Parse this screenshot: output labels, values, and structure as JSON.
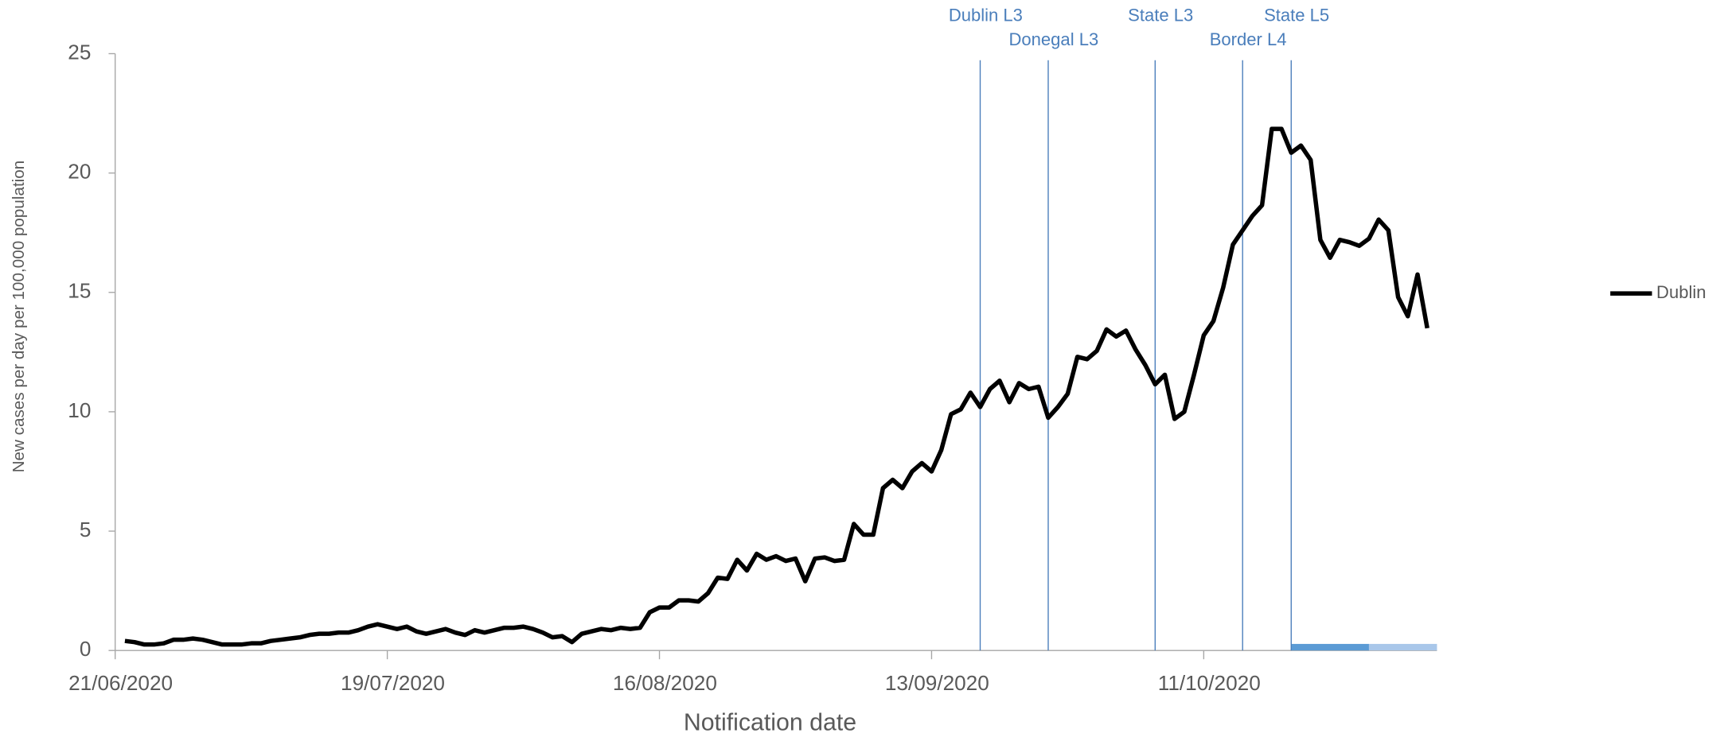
{
  "chart_data": {
    "type": "line",
    "x_label": "Notification date",
    "y_label": "New cases per day per  100,000 population",
    "x": [
      "22/06/2020",
      "23/06/2020",
      "24/06/2020",
      "25/06/2020",
      "26/06/2020",
      "27/06/2020",
      "28/06/2020",
      "29/06/2020",
      "30/06/2020",
      "01/07/2020",
      "02/07/2020",
      "03/07/2020",
      "04/07/2020",
      "05/07/2020",
      "06/07/2020",
      "07/07/2020",
      "08/07/2020",
      "09/07/2020",
      "10/07/2020",
      "11/07/2020",
      "12/07/2020",
      "13/07/2020",
      "14/07/2020",
      "15/07/2020",
      "16/07/2020",
      "17/07/2020",
      "18/07/2020",
      "19/07/2020",
      "20/07/2020",
      "21/07/2020",
      "22/07/2020",
      "23/07/2020",
      "24/07/2020",
      "25/07/2020",
      "26/07/2020",
      "27/07/2020",
      "28/07/2020",
      "29/07/2020",
      "30/07/2020",
      "31/07/2020",
      "01/08/2020",
      "02/08/2020",
      "03/08/2020",
      "04/08/2020",
      "05/08/2020",
      "06/08/2020",
      "07/08/2020",
      "08/08/2020",
      "09/08/2020",
      "10/08/2020",
      "11/08/2020",
      "12/08/2020",
      "13/08/2020",
      "14/08/2020",
      "15/08/2020",
      "16/08/2020",
      "17/08/2020",
      "18/08/2020",
      "19/08/2020",
      "20/08/2020",
      "21/08/2020",
      "22/08/2020",
      "23/08/2020",
      "24/08/2020",
      "25/08/2020",
      "26/08/2020",
      "27/08/2020",
      "28/08/2020",
      "29/08/2020",
      "30/08/2020",
      "31/08/2020",
      "01/09/2020",
      "02/09/2020",
      "03/09/2020",
      "04/09/2020",
      "05/09/2020",
      "06/09/2020",
      "07/09/2020",
      "08/09/2020",
      "09/09/2020",
      "10/09/2020",
      "11/09/2020",
      "12/09/2020",
      "13/09/2020",
      "14/09/2020",
      "15/09/2020",
      "16/09/2020",
      "17/09/2020",
      "18/09/2020",
      "19/09/2020",
      "20/09/2020",
      "21/09/2020",
      "22/09/2020",
      "23/09/2020",
      "24/09/2020",
      "25/09/2020",
      "26/09/2020",
      "27/09/2020",
      "28/09/2020",
      "29/09/2020",
      "30/09/2020",
      "01/10/2020",
      "02/10/2020",
      "03/10/2020",
      "04/10/2020",
      "05/10/2020",
      "06/10/2020",
      "07/10/2020",
      "08/10/2020",
      "09/10/2020",
      "10/10/2020",
      "11/10/2020",
      "12/10/2020",
      "13/10/2020",
      "14/10/2020",
      "15/10/2020",
      "16/10/2020",
      "17/10/2020",
      "18/10/2020",
      "19/10/2020",
      "20/10/2020",
      "21/10/2020",
      "22/10/2020",
      "23/10/2020",
      "24/10/2020",
      "25/10/2020",
      "26/10/2020",
      "27/10/2020",
      "28/10/2020",
      "29/10/2020",
      "30/10/2020",
      "31/10/2020",
      "01/11/2020",
      "02/11/2020",
      "03/11/2020"
    ],
    "series": [
      {
        "name": "Dublin",
        "color": "#000000",
        "values": [
          0.4,
          0.35,
          0.25,
          0.25,
          0.3,
          0.45,
          0.45,
          0.5,
          0.45,
          0.35,
          0.25,
          0.25,
          0.25,
          0.3,
          0.3,
          0.4,
          0.45,
          0.5,
          0.55,
          0.65,
          0.7,
          0.7,
          0.75,
          0.75,
          0.85,
          1.0,
          1.1,
          1.0,
          0.9,
          1.0,
          0.8,
          0.7,
          0.8,
          0.9,
          0.75,
          0.65,
          0.85,
          0.75,
          0.85,
          0.95,
          0.95,
          1.0,
          0.9,
          0.75,
          0.55,
          0.6,
          0.35,
          0.7,
          0.8,
          0.9,
          0.85,
          0.95,
          0.9,
          0.95,
          1.6,
          1.8,
          1.8,
          2.1,
          2.1,
          2.05,
          2.4,
          3.05,
          3.0,
          3.8,
          3.35,
          4.05,
          3.8,
          3.95,
          3.75,
          3.85,
          2.9,
          3.85,
          3.9,
          3.75,
          3.8,
          5.3,
          4.85,
          4.85,
          6.8,
          7.15,
          6.8,
          7.5,
          7.85,
          7.5,
          8.4,
          9.9,
          10.1,
          10.8,
          10.2,
          10.95,
          11.3,
          10.4,
          11.2,
          10.95,
          11.05,
          9.75,
          10.2,
          10.75,
          12.3,
          12.2,
          12.55,
          13.45,
          13.15,
          13.4,
          12.6,
          11.95,
          11.15,
          11.55,
          9.7,
          10.0,
          11.55,
          13.2,
          13.8,
          15.2,
          17.0,
          17.6,
          18.2,
          18.65,
          21.85,
          21.85,
          20.85,
          21.15,
          20.55,
          17.2,
          16.45,
          17.2,
          17.1,
          16.95,
          17.25,
          18.05,
          17.6,
          14.8,
          14.0,
          15.75,
          13.5
        ]
      }
    ],
    "xlim": [
      "21/06/2020",
      "04/11/2020"
    ],
    "xticks": [
      "21/06/2020",
      "19/07/2020",
      "16/08/2020",
      "13/09/2020",
      "11/10/2020"
    ],
    "ylim": [
      0,
      25
    ],
    "yticks": [
      0,
      5,
      10,
      15,
      20,
      25
    ],
    "events": [
      {
        "label": "Dublin L3",
        "date": "18/09/2020"
      },
      {
        "label": "Donegal L3",
        "date": "25/09/2020"
      },
      {
        "label": "State L3",
        "date": "06/10/2020"
      },
      {
        "label": "Border L4",
        "date": "15/10/2020"
      },
      {
        "label": "State L5",
        "date": "20/10/2020"
      }
    ],
    "event_color": "#4a7ebb",
    "bands": [
      {
        "start": "20/10/2020",
        "end": "28/10/2020",
        "color": "#5b9bd5"
      },
      {
        "start": "28/10/2020",
        "end": "04/11/2020",
        "color": "#a9c7ea"
      }
    ],
    "legend": "right"
  }
}
